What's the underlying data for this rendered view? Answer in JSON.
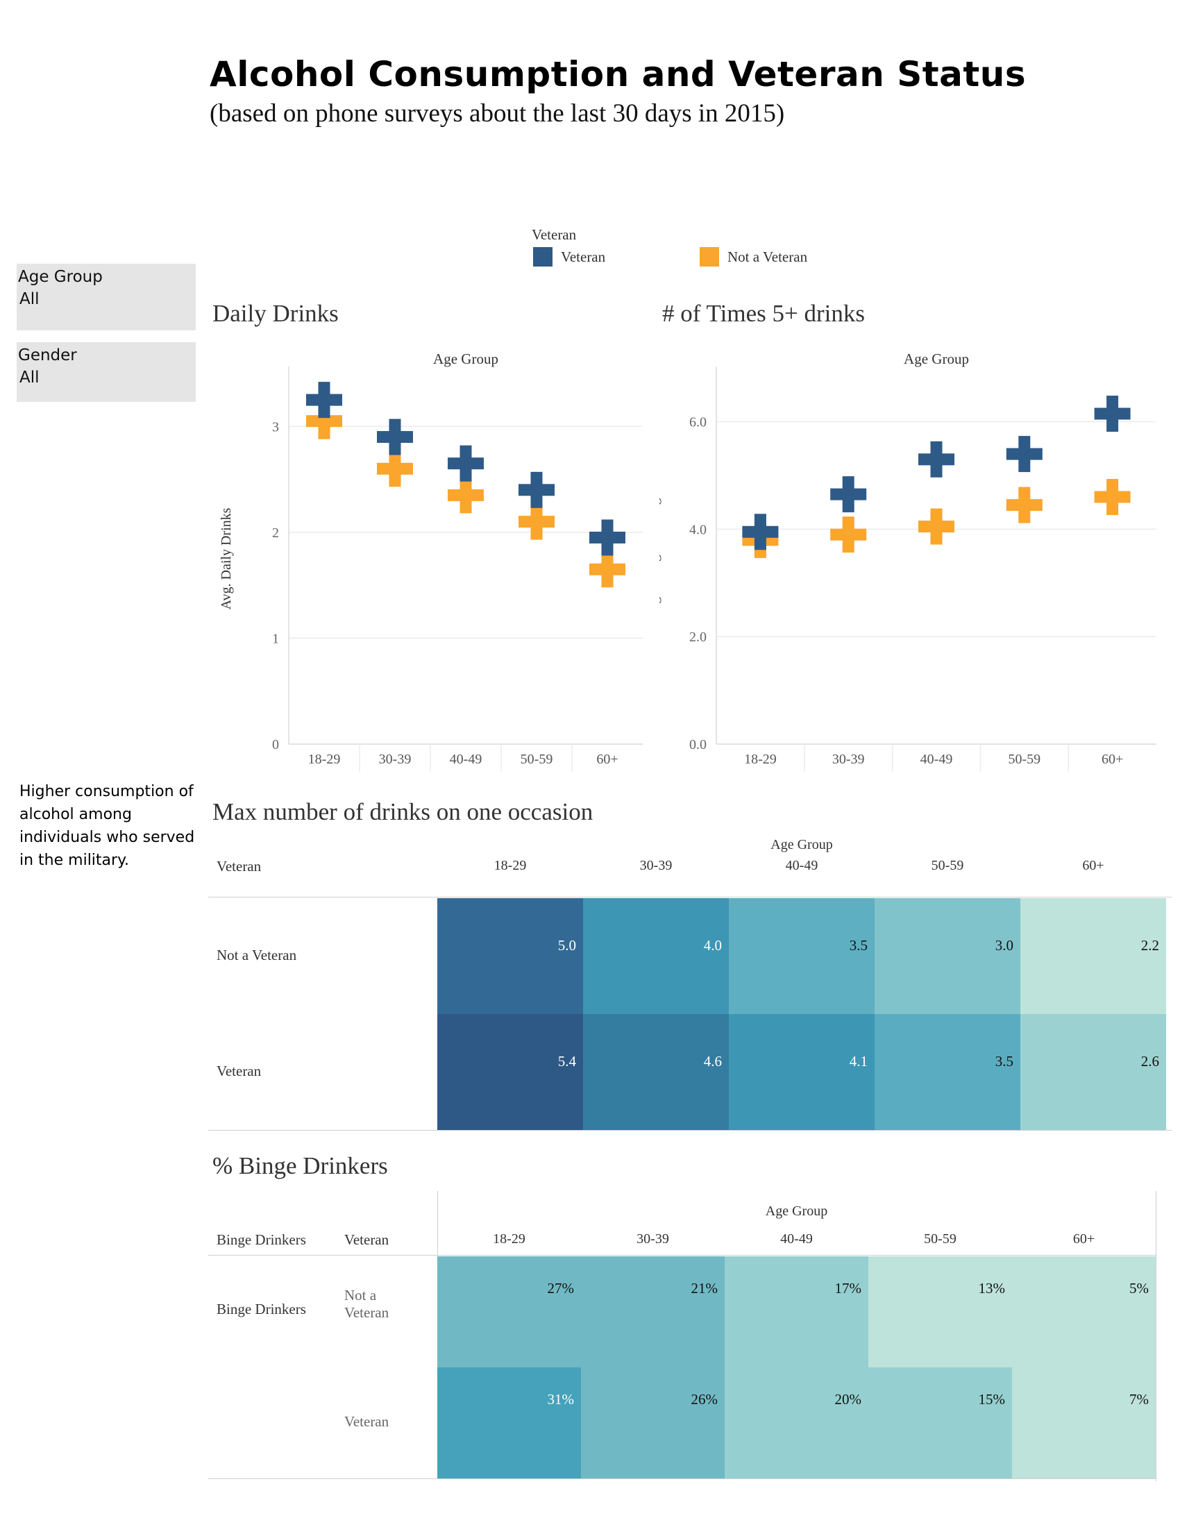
{
  "header": {
    "title": "Alcohol Consumption and Veteran Status",
    "subtitle": "(based on phone surveys about the last 30 days in 2015)"
  },
  "filters": [
    {
      "label": "Age Group",
      "value": "All"
    },
    {
      "label": "Gender",
      "value": "All"
    }
  ],
  "note": "Higher consumption of alcohol among individuals who served in the military.",
  "legend": {
    "title": "Veteran",
    "items": [
      {
        "label": "Veteran",
        "color": "#2e5a87"
      },
      {
        "label": "Not a Veteran",
        "color": "#faa52c"
      }
    ]
  },
  "chart_data": [
    {
      "type": "scatter",
      "title": "Daily Drinks",
      "column_header": "Age Group",
      "ylabel": "Avg. Daily Drinks",
      "categories": [
        "18-29",
        "30-39",
        "40-49",
        "50-59",
        "60+"
      ],
      "ylim": [
        0,
        3.5
      ],
      "yticks": [
        "0",
        "1",
        "2",
        "3"
      ],
      "series": [
        {
          "name": "Veteran",
          "color": "#2e5a87",
          "values": [
            3.25,
            2.9,
            2.65,
            2.4,
            1.95
          ]
        },
        {
          "name": "Not a Veteran",
          "color": "#faa52c",
          "values": [
            3.05,
            2.6,
            2.35,
            2.1,
            1.65
          ]
        }
      ]
    },
    {
      "type": "scatter",
      "title": "# of Times 5+ drinks",
      "column_header": "Age Group",
      "ylabel": "Avg. # binge drinking",
      "categories": [
        "18-29",
        "30-39",
        "40-49",
        "50-59",
        "60+"
      ],
      "ylim": [
        0,
        6.9
      ],
      "yticks": [
        "0.0",
        "2.0",
        "4.0",
        "6.0"
      ],
      "series": [
        {
          "name": "Veteran",
          "color": "#2e5a87",
          "values": [
            3.95,
            4.65,
            5.3,
            5.4,
            6.15
          ]
        },
        {
          "name": "Not a Veteran",
          "color": "#faa52c",
          "values": [
            3.8,
            3.9,
            4.05,
            4.45,
            4.6
          ]
        }
      ]
    },
    {
      "type": "heatmap",
      "title": "Max number of drinks on one occasion",
      "column_header": "Age Group",
      "row_header": "Veteran",
      "columns": [
        "18-29",
        "30-39",
        "40-49",
        "50-59",
        "60+"
      ],
      "rows": [
        {
          "label": "Not a Veteran",
          "values": [
            "5.0",
            "4.0",
            "3.5",
            "3.0",
            "2.2"
          ],
          "colors": [
            "#336a95",
            "#3d96b4",
            "#5fafc2",
            "#80c3cb",
            "#bee3da"
          ],
          "text_colors": [
            "#ffffff",
            "#ffffff",
            "#111111",
            "#111111",
            "#111111"
          ]
        },
        {
          "label": "Veteran",
          "values": [
            "5.4",
            "4.6",
            "4.1",
            "3.5",
            "2.6"
          ],
          "colors": [
            "#2e5986",
            "#357ca1",
            "#3d96b4",
            "#5aadc1",
            "#9cd1d1"
          ],
          "text_colors": [
            "#ffffff",
            "#ffffff",
            "#ffffff",
            "#111111",
            "#111111"
          ]
        }
      ]
    },
    {
      "type": "heatmap",
      "title": "% Binge Drinkers",
      "column_header": "Age Group",
      "row_headers": [
        "Binge Drinkers",
        "Veteran"
      ],
      "group_label": "Binge Drinkers",
      "columns": [
        "18-29",
        "30-39",
        "40-49",
        "50-59",
        "60+"
      ],
      "rows": [
        {
          "label": "Not a Veteran",
          "values": [
            "27%",
            "21%",
            "17%",
            "13%",
            "5%"
          ],
          "colors": [
            "#70b9c4",
            "#70b9c4",
            "#96cfd0",
            "#bee3da",
            "#bee3da"
          ],
          "text_colors": [
            "#111111",
            "#111111",
            "#111111",
            "#111111",
            "#111111"
          ]
        },
        {
          "label": "Veteran",
          "values": [
            "31%",
            "26%",
            "20%",
            "15%",
            "7%"
          ],
          "colors": [
            "#46a2ba",
            "#70b9c4",
            "#96cfd0",
            "#96cfd0",
            "#bee3da"
          ],
          "text_colors": [
            "#ffffff",
            "#111111",
            "#111111",
            "#111111",
            "#111111"
          ]
        }
      ]
    }
  ]
}
